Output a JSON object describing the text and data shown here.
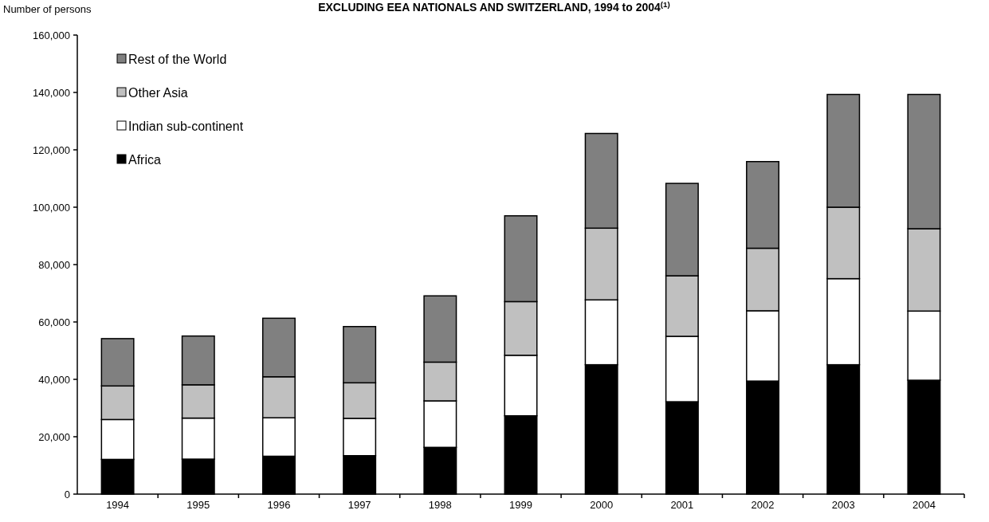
{
  "chart_data": {
    "type": "bar",
    "title": "EXCLUDING EEA NATIONALS AND SWITZERLAND, 1994 to 2004$^{(1)}$",
    "ylabel": "Number of persons",
    "categories": [
      "1994",
      "1995",
      "1996",
      "1997",
      "1998",
      "1999",
      "2000",
      "2001",
      "2002",
      "2003",
      "2004"
    ],
    "stacked": true,
    "legend": "top left",
    "grid": false,
    "ylim": [
      0,
      160000
    ],
    "yticks": [
      {
        "value": 0,
        "label": "0"
      },
      {
        "value": 20000,
        "label": "20,000"
      },
      {
        "value": 40000,
        "label": "40,000"
      },
      {
        "value": 60000,
        "label": "60,000"
      },
      {
        "value": 80000,
        "label": "80,000"
      },
      {
        "value": 100000,
        "label": "100,000"
      },
      {
        "value": 120000,
        "label": "120,000"
      },
      {
        "value": 140000,
        "label": "140,000"
      },
      {
        "value": 160000,
        "label": "160,000"
      }
    ],
    "series": [
      {
        "name": "Africa",
        "color": "#000000",
        "values": [
          12100,
          12200,
          13200,
          13400,
          16300,
          27300,
          45100,
          32200,
          39400,
          45100,
          39700
        ]
      },
      {
        "name": "Indian sub-continent",
        "color": "#ffffff",
        "values": [
          13900,
          14300,
          13400,
          13000,
          16200,
          21100,
          22600,
          22800,
          24500,
          30000,
          24100
        ]
      },
      {
        "name": "Other Asia",
        "color": "#c0c0c0",
        "values": [
          11700,
          11600,
          14300,
          12400,
          13500,
          18700,
          25000,
          21100,
          21800,
          24900,
          28700
        ]
      },
      {
        "name": "Rest of the World",
        "color": "#808080",
        "values": [
          16500,
          17000,
          20400,
          19600,
          23100,
          29900,
          33000,
          32200,
          30200,
          39300,
          46800
        ]
      }
    ]
  }
}
